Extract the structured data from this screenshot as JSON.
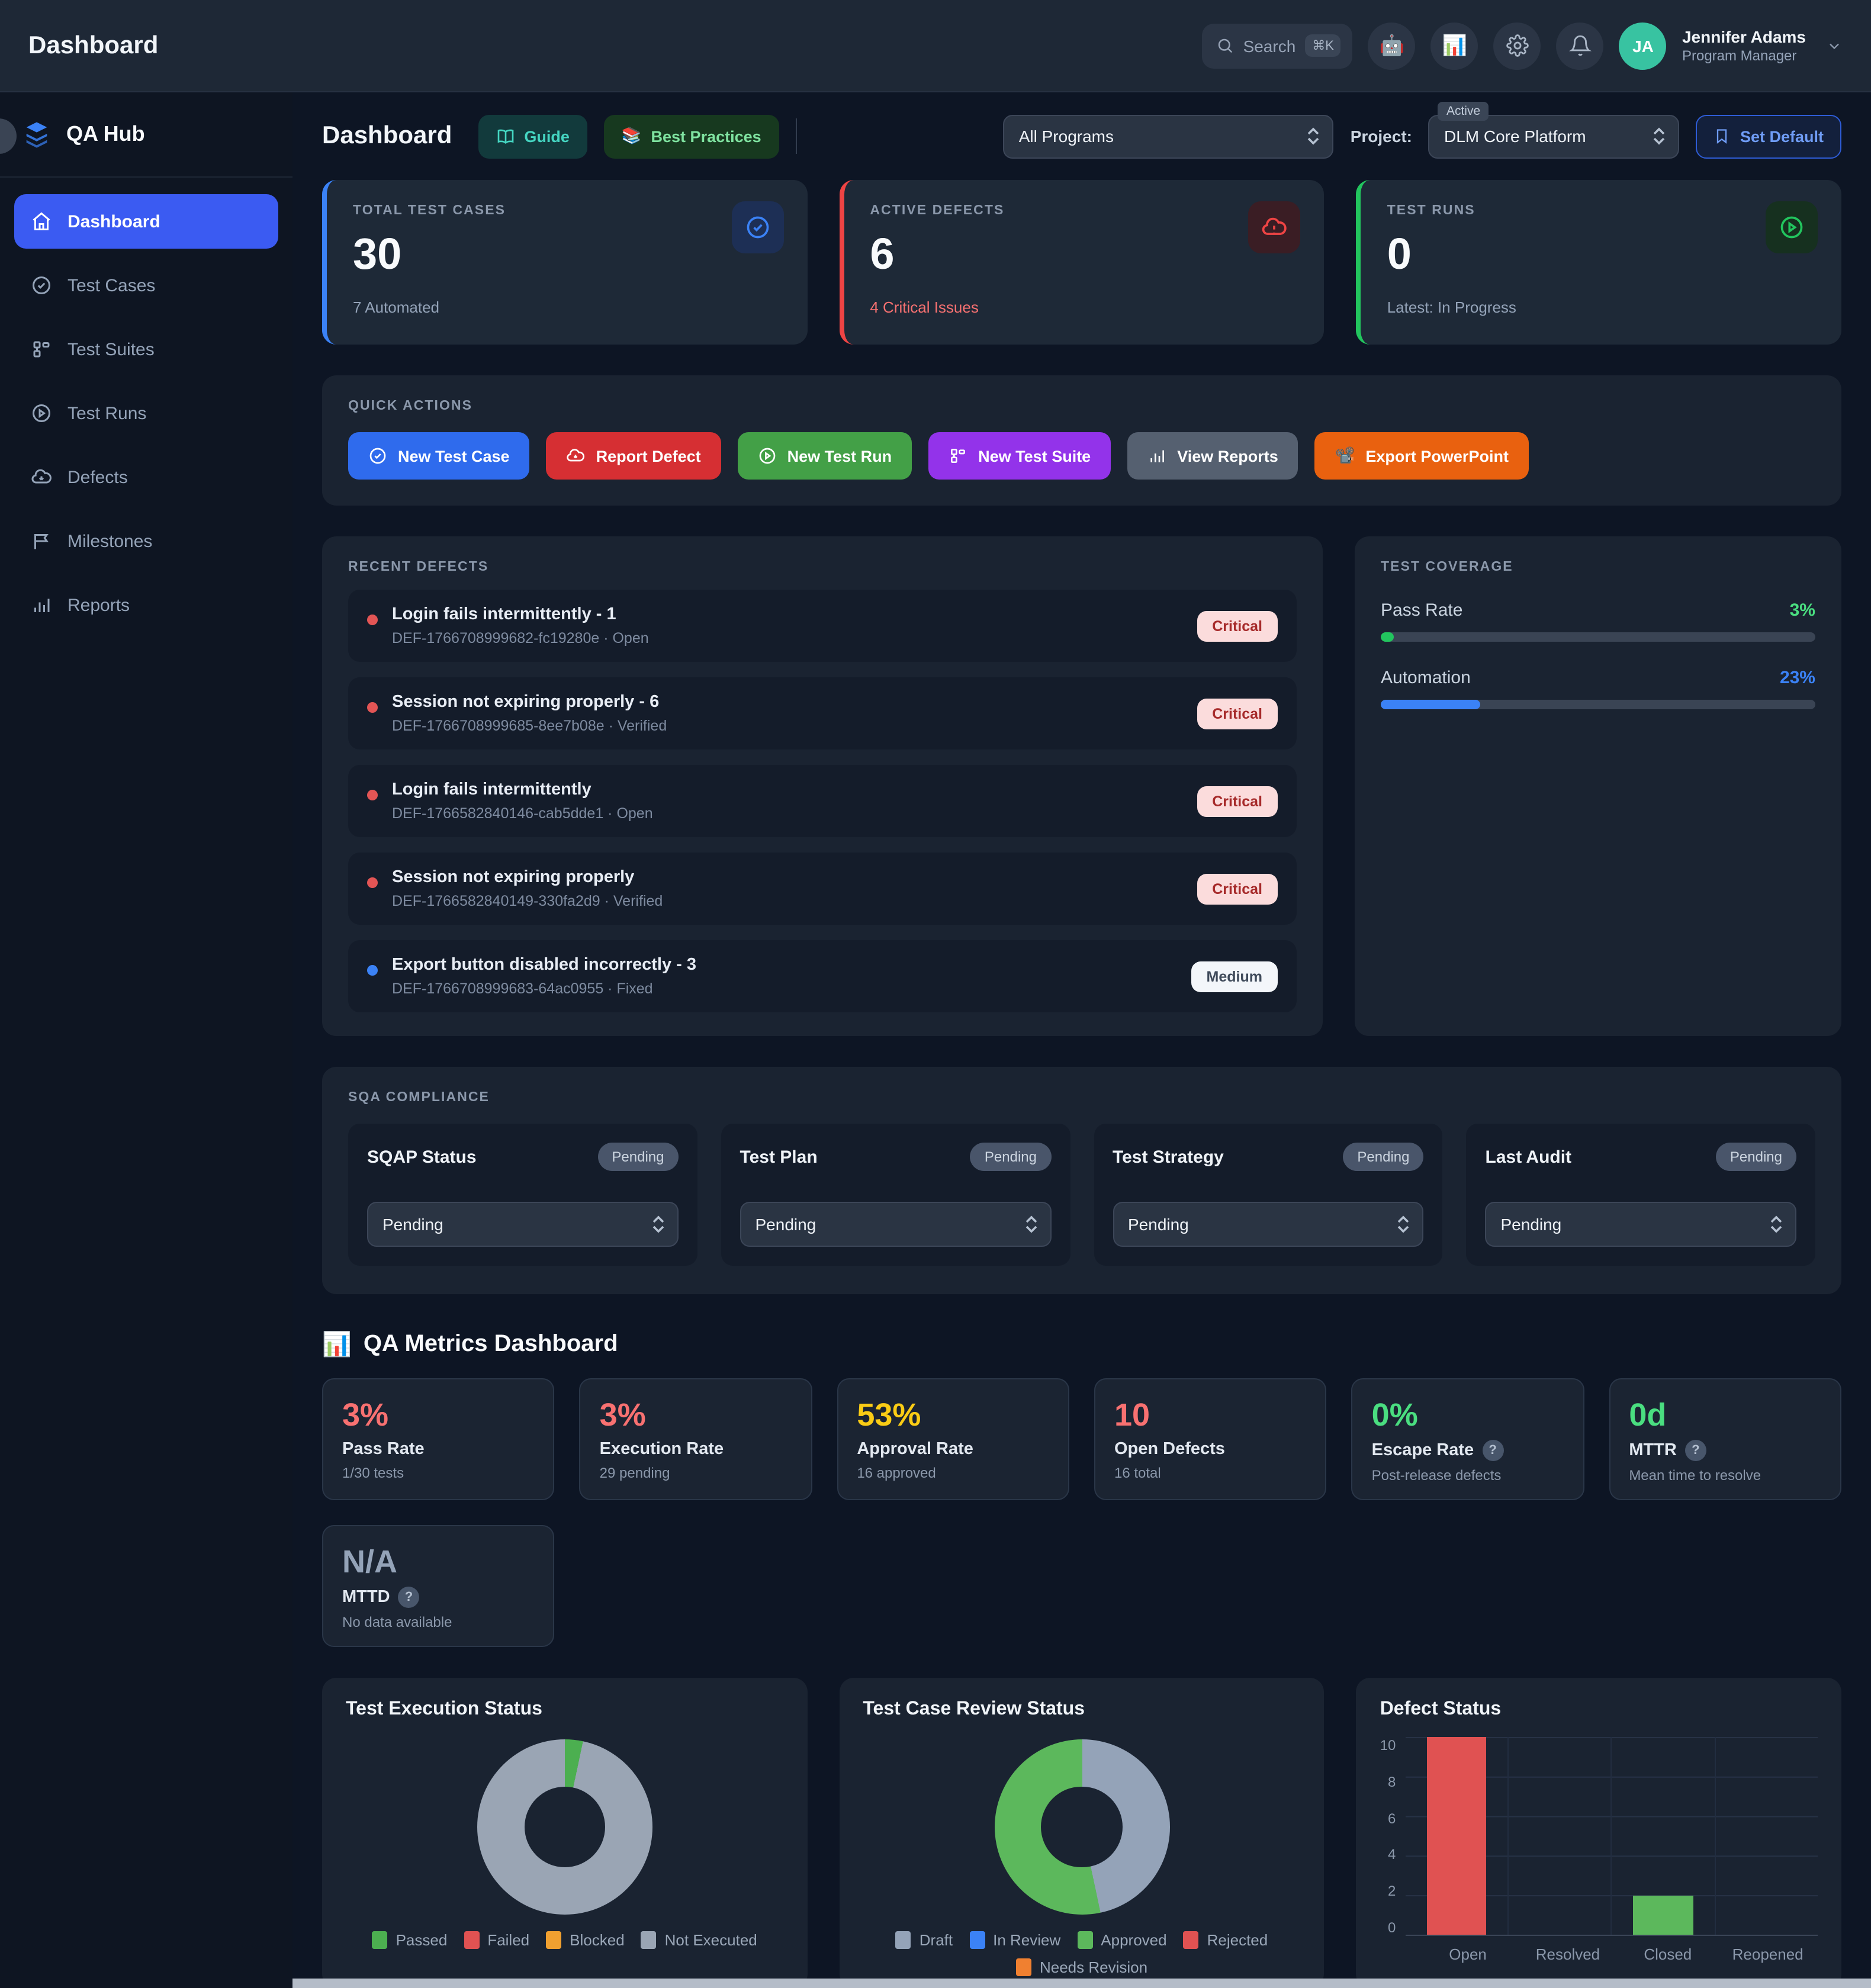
{
  "topbar": {
    "title": "Dashboard",
    "search_placeholder": "Search",
    "search_shortcut": "⌘K",
    "icons": [
      "robot-emoji",
      "bar-chart-emoji",
      "gear-icon",
      "bell-icon"
    ],
    "user": {
      "initials": "JA",
      "name": "Jennifer Adams",
      "role": "Program Manager"
    }
  },
  "sidebar": {
    "brand": "QA Hub",
    "items": [
      {
        "label": "Dashboard",
        "icon": "home-icon",
        "active": true
      },
      {
        "label": "Test Cases",
        "icon": "check-circle-icon",
        "active": false
      },
      {
        "label": "Test Suites",
        "icon": "suite-icon",
        "active": false
      },
      {
        "label": "Test Runs",
        "icon": "play-circle-icon",
        "active": false
      },
      {
        "label": "Defects",
        "icon": "cloud-download-icon",
        "active": false
      },
      {
        "label": "Milestones",
        "icon": "flag-icon",
        "active": false
      },
      {
        "label": "Reports",
        "icon": "bar-chart-icon",
        "active": false
      }
    ]
  },
  "header": {
    "title": "Dashboard",
    "guide_label": "Guide",
    "best_practices_label": "Best Practices",
    "programs_select": "All Programs",
    "project_label": "Project:",
    "project_badge": "Active",
    "project_select": "DLM Core Platform",
    "set_default_label": "Set Default"
  },
  "stats": [
    {
      "label": "TOTAL TEST CASES",
      "value": "30",
      "sub": "7 Automated",
      "accent": "#3b82f6"
    },
    {
      "label": "ACTIVE DEFECTS",
      "value": "6",
      "sub": "4 Critical Issues",
      "accent": "#ef4444"
    },
    {
      "label": "TEST RUNS",
      "value": "0",
      "sub": "Latest: In Progress",
      "accent": "#22c55e"
    }
  ],
  "quick_actions": {
    "label": "QUICK ACTIONS",
    "buttons": [
      {
        "label": "New Test Case",
        "color": "#2f6bed"
      },
      {
        "label": "Report Defect",
        "color": "#d62f33"
      },
      {
        "label": "New Test Run",
        "color": "#43a047"
      },
      {
        "label": "New Test Suite",
        "color": "#9333ea"
      },
      {
        "label": "View Reports",
        "color": "#556070"
      },
      {
        "label": "Export PowerPoint",
        "color": "#e9610f",
        "emoji": "📽️"
      }
    ]
  },
  "recent_defects": {
    "label": "RECENT DEFECTS",
    "items": [
      {
        "title": "Login fails intermittently - 1",
        "meta": "DEF-1766708999682-fc19280e · Open",
        "severity": "Critical"
      },
      {
        "title": "Session not expiring properly - 6",
        "meta": "DEF-1766708999685-8ee7b08e · Verified",
        "severity": "Critical"
      },
      {
        "title": "Login fails intermittently",
        "meta": "DEF-1766582840146-cab5dde1 · Open",
        "severity": "Critical"
      },
      {
        "title": "Session not expiring properly",
        "meta": "DEF-1766582840149-330fa2d9 · Verified",
        "severity": "Critical"
      },
      {
        "title": "Export button disabled incorrectly - 3",
        "meta": "DEF-1766708999683-64ac0955 · Fixed",
        "severity": "Medium"
      }
    ]
  },
  "coverage": {
    "label": "TEST COVERAGE",
    "pass_rate_label": "Pass Rate",
    "pass_rate_value": "3%",
    "pass_rate_pct": 3,
    "automation_label": "Automation",
    "automation_value": "23%",
    "automation_pct": 23
  },
  "compliance": {
    "label": "SQA COMPLIANCE",
    "cards": [
      {
        "name": "SQAP Status",
        "badge": "Pending",
        "select_value": "Pending"
      },
      {
        "name": "Test Plan",
        "badge": "Pending",
        "select_value": "Pending"
      },
      {
        "name": "Test Strategy",
        "badge": "Pending",
        "select_value": "Pending"
      },
      {
        "name": "Last Audit",
        "badge": "Pending",
        "select_value": "Pending"
      }
    ]
  },
  "metrics": {
    "heading": "QA Metrics Dashboard",
    "heading_emoji": "📊",
    "cards": [
      {
        "value": "3%",
        "label": "Pass Rate",
        "sub": "1/30 tests",
        "color": "red",
        "help": false
      },
      {
        "value": "3%",
        "label": "Execution Rate",
        "sub": "29 pending",
        "color": "red",
        "help": false
      },
      {
        "value": "53%",
        "label": "Approval Rate",
        "sub": "16 approved",
        "color": "yellow",
        "help": false
      },
      {
        "value": "10",
        "label": "Open Defects",
        "sub": "16 total",
        "color": "red",
        "help": false
      },
      {
        "value": "0%",
        "label": "Escape Rate",
        "sub": "Post-release defects",
        "color": "green",
        "help": true
      },
      {
        "value": "0d",
        "label": "MTTR",
        "sub": "Mean time to resolve",
        "color": "green",
        "help": true
      },
      {
        "value": "N/A",
        "label": "MTTD",
        "sub": "No data available",
        "color": "gray",
        "help": true
      }
    ],
    "help_glyph": "?"
  },
  "chart_data": [
    {
      "type": "pie",
      "donut": true,
      "title": "Test Execution Status",
      "labels": [
        "Passed",
        "Failed",
        "Blocked",
        "Not Executed"
      ],
      "values": [
        1,
        0,
        0,
        29
      ],
      "colors": [
        "#4caf50",
        "#e05252",
        "#f0a030",
        "#9aa5b4"
      ],
      "legend_position": "bottom"
    },
    {
      "type": "pie",
      "donut": true,
      "title": "Test Case Review Status",
      "labels": [
        "Draft",
        "In Review",
        "Approved",
        "Rejected",
        "Needs Revision"
      ],
      "values": [
        14,
        0,
        16,
        0,
        0
      ],
      "colors": [
        "#94a3b8",
        "#3b82f6",
        "#5cb85c",
        "#e05252",
        "#f08030"
      ],
      "legend_position": "bottom"
    },
    {
      "type": "bar",
      "title": "Defect Status",
      "categories": [
        "Open",
        "Resolved",
        "Closed",
        "Reopened"
      ],
      "values": [
        10,
        0,
        2,
        0
      ],
      "bar_colors": [
        "#e05252",
        "#e05252",
        "#5cb85c",
        "#e05252"
      ],
      "ylim": [
        0,
        10
      ],
      "yticks": [
        0,
        2,
        4,
        6,
        8,
        10
      ],
      "grid": true
    }
  ],
  "colors": {
    "page_bg": "#0d1524",
    "topbar_bg": "#1e2836",
    "sidebar_bg": "#0e1522",
    "panel_bg": "#1a2331",
    "card_bg": "#141c2a",
    "active_nav": "#3b5bf2",
    "accent_blue": "#3b82f6",
    "accent_red": "#ef4444",
    "accent_green": "#22c55e",
    "avatar_teal": "#38c3a1"
  }
}
